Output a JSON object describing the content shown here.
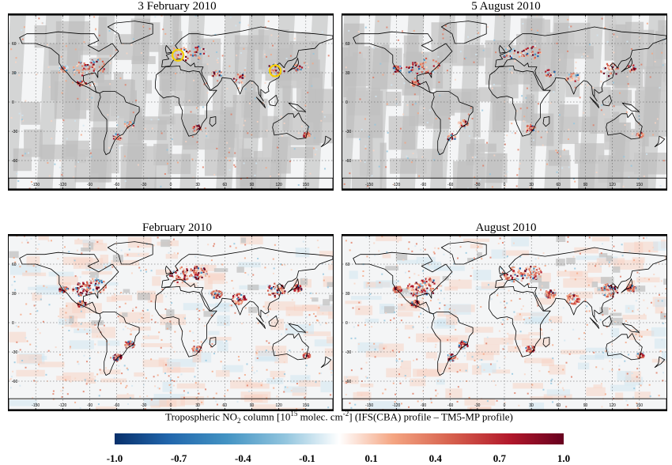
{
  "panels": [
    {
      "title": "3 February 2010"
    },
    {
      "title": "5 August 2010"
    },
    {
      "title": "February 2010"
    },
    {
      "title": "August 2010"
    }
  ],
  "lon_ticks": [
    "-150",
    "-120",
    "-90",
    "-60",
    "-30",
    "0",
    "30",
    "60",
    "90",
    "120",
    "150"
  ],
  "lat_ticks": [
    "60",
    "30",
    "0",
    "-30",
    "-60"
  ],
  "colorbar": {
    "label_prefix": "Tropospheric NO",
    "label_sub": "2",
    "label_mid": " column [10",
    "label_sup": "15",
    "label_suffix": " molec. cm",
    "label_sup2": "-2",
    "label_end": "] (IFS(CBA) profile – TM5-MP profile)",
    "ticks": [
      "-1.0",
      "-0.7",
      "-0.4",
      "-0.1",
      "0.1",
      "0.4",
      "0.7",
      "1.0"
    ],
    "colors": [
      "#08306b",
      "#2166ac",
      "#4393c3",
      "#92c5de",
      "#ffffff",
      "#f4a582",
      "#d6604d",
      "#b2182b",
      "#67001f"
    ]
  },
  "highlight_color": "#f5d000"
}
